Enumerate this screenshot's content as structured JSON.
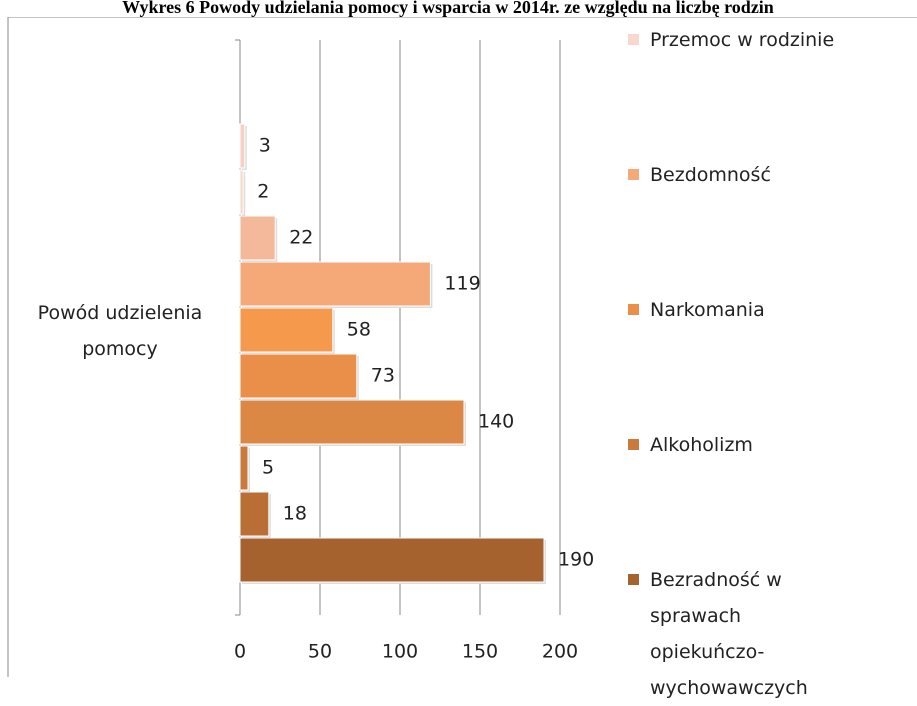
{
  "chart_data": {
    "type": "bar",
    "orientation": "horizontal",
    "title": "Wykres 6 Powody udzielania pomocy i wsparcia w 2014r. ze względu na liczbę rodzin",
    "categories": [
      "Powód udzielenia pomocy"
    ],
    "series": [
      {
        "name": "Bezradność w sprawach opiekuńczo-wychowawczych",
        "color": "#a5622f",
        "values": [
          190
        ]
      },
      {
        "name": null,
        "color": "#b86e35",
        "values": [
          18
        ]
      },
      {
        "name": "Alkoholizm",
        "color": "#c97a3c",
        "values": [
          5
        ]
      },
      {
        "name": null,
        "color": "#dc8845",
        "values": [
          140
        ]
      },
      {
        "name": "Narkomania",
        "color": "#e98f4a",
        "values": [
          73
        ]
      },
      {
        "name": null,
        "color": "#f59a4c",
        "values": [
          58
        ]
      },
      {
        "name": "Bezdomność",
        "color": "#f5a878",
        "values": [
          119
        ]
      },
      {
        "name": null,
        "color": "#f4b99b",
        "values": [
          22
        ]
      },
      {
        "name": "Przemoc w rodzinie",
        "color": "#f8d8cc",
        "values": [
          2
        ]
      },
      {
        "name": null,
        "color": "#f7d0c4",
        "values": [
          3
        ]
      }
    ],
    "xlim": [
      0,
      200
    ],
    "xticks": [
      0,
      50,
      100,
      150,
      200
    ],
    "grid": true
  }
}
